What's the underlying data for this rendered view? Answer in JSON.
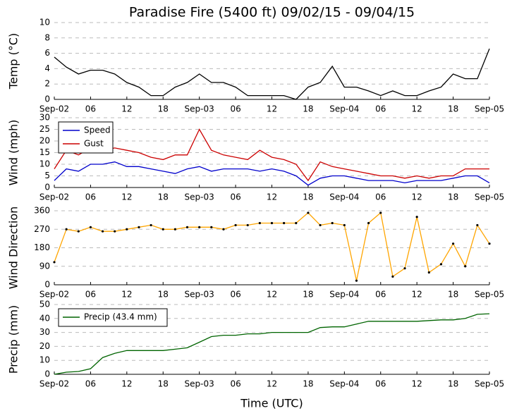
{
  "chart_data": [
    {
      "type": "line",
      "title": "Paradise Fire (5400 ft) 09/02/15 - 09/04/15",
      "ylabel": "Temp (°C)",
      "x": [
        "2015-09-02 00:00",
        "2015-09-02 02:00",
        "2015-09-02 04:00",
        "2015-09-02 06:00",
        "2015-09-02 08:00",
        "2015-09-02 10:00",
        "2015-09-02 12:00",
        "2015-09-02 14:00",
        "2015-09-02 16:00",
        "2015-09-02 18:00",
        "2015-09-02 20:00",
        "2015-09-02 22:00",
        "2015-09-03 00:00",
        "2015-09-03 02:00",
        "2015-09-03 04:00",
        "2015-09-03 06:00",
        "2015-09-03 08:00",
        "2015-09-03 10:00",
        "2015-09-03 12:00",
        "2015-09-03 14:00",
        "2015-09-03 16:00",
        "2015-09-03 18:00",
        "2015-09-03 20:00",
        "2015-09-03 22:00",
        "2015-09-04 00:00",
        "2015-09-04 02:00",
        "2015-09-04 04:00",
        "2015-09-04 06:00",
        "2015-09-04 08:00",
        "2015-09-04 10:00",
        "2015-09-04 12:00",
        "2015-09-04 14:00",
        "2015-09-04 16:00",
        "2015-09-04 18:00",
        "2015-09-04 20:00",
        "2015-09-04 22:00",
        "2015-09-05 00:00"
      ],
      "series": [
        {
          "name": "Temp",
          "color": "#000000",
          "values": [
            5.5,
            4.2,
            3.3,
            3.8,
            3.8,
            3.3,
            2.2,
            1.6,
            0.5,
            0.5,
            1.6,
            2.2,
            3.3,
            2.2,
            2.2,
            1.6,
            0.5,
            0.5,
            0.5,
            0.5,
            0.0,
            1.6,
            2.2,
            4.3,
            1.6,
            1.6,
            1.1,
            0.5,
            1.1,
            0.5,
            0.5,
            1.1,
            1.6,
            3.3,
            2.7,
            2.7,
            6.6
          ]
        }
      ],
      "xlim": [
        "2015-09-02 00:00",
        "2015-09-05 00:00"
      ],
      "xticks": [
        {
          "value": "2015-09-02 00:00",
          "label": "Sep-02"
        },
        {
          "value": "2015-09-02 06:00",
          "label": "06"
        },
        {
          "value": "2015-09-02 12:00",
          "label": "12"
        },
        {
          "value": "2015-09-02 18:00",
          "label": "18"
        },
        {
          "value": "2015-09-03 00:00",
          "label": "Sep-03"
        },
        {
          "value": "2015-09-03 06:00",
          "label": "06"
        },
        {
          "value": "2015-09-03 12:00",
          "label": "12"
        },
        {
          "value": "2015-09-03 18:00",
          "label": "18"
        },
        {
          "value": "2015-09-04 00:00",
          "label": "Sep-04"
        },
        {
          "value": "2015-09-04 06:00",
          "label": "06"
        },
        {
          "value": "2015-09-04 12:00",
          "label": "12"
        },
        {
          "value": "2015-09-04 18:00",
          "label": "18"
        },
        {
          "value": "2015-09-05 00:00",
          "label": "Sep-05"
        }
      ],
      "ylim": [
        0,
        10
      ],
      "yticks": [
        0,
        2,
        4,
        6,
        8,
        10
      ],
      "grid": true
    },
    {
      "type": "line",
      "ylabel": "Wind (mph)",
      "legend": "upper left",
      "x": [
        "2015-09-02 00:00",
        "2015-09-02 02:00",
        "2015-09-02 04:00",
        "2015-09-02 06:00",
        "2015-09-02 08:00",
        "2015-09-02 10:00",
        "2015-09-02 12:00",
        "2015-09-02 14:00",
        "2015-09-02 16:00",
        "2015-09-02 18:00",
        "2015-09-02 20:00",
        "2015-09-02 22:00",
        "2015-09-03 00:00",
        "2015-09-03 02:00",
        "2015-09-03 04:00",
        "2015-09-03 06:00",
        "2015-09-03 08:00",
        "2015-09-03 10:00",
        "2015-09-03 12:00",
        "2015-09-03 14:00",
        "2015-09-03 16:00",
        "2015-09-03 18:00",
        "2015-09-03 20:00",
        "2015-09-03 22:00",
        "2015-09-04 00:00",
        "2015-09-04 02:00",
        "2015-09-04 04:00",
        "2015-09-04 06:00",
        "2015-09-04 08:00",
        "2015-09-04 10:00",
        "2015-09-04 12:00",
        "2015-09-04 14:00",
        "2015-09-04 16:00",
        "2015-09-04 18:00",
        "2015-09-04 20:00",
        "2015-09-04 22:00",
        "2015-09-05 00:00"
      ],
      "series": [
        {
          "name": "Speed",
          "color": "#0000cc",
          "values": [
            3,
            8,
            7,
            10,
            10,
            11,
            9,
            9,
            8,
            7,
            6,
            8,
            9,
            7,
            8,
            8,
            8,
            7,
            8,
            7,
            5,
            1,
            4,
            5,
            5,
            4,
            3,
            3,
            3,
            2,
            3,
            3,
            3,
            4,
            5,
            5,
            2
          ]
        },
        {
          "name": "Gust",
          "color": "#cc0000",
          "values": [
            8,
            16,
            14,
            17,
            16,
            17,
            16,
            15,
            13,
            12,
            14,
            14,
            25,
            16,
            14,
            13,
            12,
            16,
            13,
            12,
            10,
            3,
            11,
            9,
            8,
            7,
            6,
            5,
            5,
            4,
            5,
            4,
            5,
            5,
            8,
            8,
            8
          ]
        }
      ],
      "xlim": [
        "2015-09-02 00:00",
        "2015-09-05 00:00"
      ],
      "xticks": [
        {
          "value": "2015-09-02 00:00",
          "label": "Sep-02"
        },
        {
          "value": "2015-09-02 06:00",
          "label": "06"
        },
        {
          "value": "2015-09-02 12:00",
          "label": "12"
        },
        {
          "value": "2015-09-02 18:00",
          "label": "18"
        },
        {
          "value": "2015-09-03 00:00",
          "label": "Sep-03"
        },
        {
          "value": "2015-09-03 06:00",
          "label": "06"
        },
        {
          "value": "2015-09-03 12:00",
          "label": "12"
        },
        {
          "value": "2015-09-03 18:00",
          "label": "18"
        },
        {
          "value": "2015-09-04 00:00",
          "label": "Sep-04"
        },
        {
          "value": "2015-09-04 06:00",
          "label": "06"
        },
        {
          "value": "2015-09-04 12:00",
          "label": "12"
        },
        {
          "value": "2015-09-04 18:00",
          "label": "18"
        },
        {
          "value": "2015-09-05 00:00",
          "label": "Sep-05"
        }
      ],
      "ylim": [
        0,
        30
      ],
      "yticks": [
        0,
        5,
        10,
        15,
        20,
        25,
        30
      ],
      "grid": true
    },
    {
      "type": "line",
      "ylabel": "Wind Direction",
      "markers": true,
      "x": [
        "2015-09-02 00:00",
        "2015-09-02 02:00",
        "2015-09-02 04:00",
        "2015-09-02 06:00",
        "2015-09-02 08:00",
        "2015-09-02 10:00",
        "2015-09-02 12:00",
        "2015-09-02 14:00",
        "2015-09-02 16:00",
        "2015-09-02 18:00",
        "2015-09-02 20:00",
        "2015-09-02 22:00",
        "2015-09-03 00:00",
        "2015-09-03 02:00",
        "2015-09-03 04:00",
        "2015-09-03 06:00",
        "2015-09-03 08:00",
        "2015-09-03 10:00",
        "2015-09-03 12:00",
        "2015-09-03 14:00",
        "2015-09-03 16:00",
        "2015-09-03 18:00",
        "2015-09-03 20:00",
        "2015-09-03 22:00",
        "2015-09-04 00:00",
        "2015-09-04 02:00",
        "2015-09-04 04:00",
        "2015-09-04 06:00",
        "2015-09-04 08:00",
        "2015-09-04 10:00",
        "2015-09-04 12:00",
        "2015-09-04 14:00",
        "2015-09-04 16:00",
        "2015-09-04 18:00",
        "2015-09-04 20:00",
        "2015-09-04 22:00",
        "2015-09-05 00:00"
      ],
      "series": [
        {
          "name": "Direction",
          "color": "#ffa500",
          "values": [
            110,
            270,
            260,
            280,
            260,
            260,
            270,
            280,
            290,
            270,
            270,
            280,
            280,
            280,
            270,
            290,
            290,
            300,
            300,
            300,
            300,
            350,
            290,
            300,
            290,
            20,
            300,
            350,
            40,
            80,
            330,
            60,
            100,
            200,
            90,
            290,
            200
          ]
        }
      ],
      "xlim": [
        "2015-09-02 00:00",
        "2015-09-05 00:00"
      ],
      "xticks": [
        {
          "value": "2015-09-02 00:00",
          "label": "Sep-02"
        },
        {
          "value": "2015-09-02 06:00",
          "label": "06"
        },
        {
          "value": "2015-09-02 12:00",
          "label": "12"
        },
        {
          "value": "2015-09-02 18:00",
          "label": "18"
        },
        {
          "value": "2015-09-03 00:00",
          "label": "Sep-03"
        },
        {
          "value": "2015-09-03 06:00",
          "label": "06"
        },
        {
          "value": "2015-09-03 12:00",
          "label": "12"
        },
        {
          "value": "2015-09-03 18:00",
          "label": "18"
        },
        {
          "value": "2015-09-04 00:00",
          "label": "Sep-04"
        },
        {
          "value": "2015-09-04 06:00",
          "label": "06"
        },
        {
          "value": "2015-09-04 12:00",
          "label": "12"
        },
        {
          "value": "2015-09-04 18:00",
          "label": "18"
        },
        {
          "value": "2015-09-05 00:00",
          "label": "Sep-05"
        }
      ],
      "ylim": [
        0,
        360
      ],
      "yticks": [
        0,
        90,
        180,
        270,
        360
      ],
      "grid": true
    },
    {
      "type": "line",
      "ylabel": "Precip (mm)",
      "xlabel": "Time (UTC)",
      "legend": "upper left",
      "x": [
        "2015-09-02 00:00",
        "2015-09-02 02:00",
        "2015-09-02 04:00",
        "2015-09-02 06:00",
        "2015-09-02 08:00",
        "2015-09-02 10:00",
        "2015-09-02 12:00",
        "2015-09-02 14:00",
        "2015-09-02 16:00",
        "2015-09-02 18:00",
        "2015-09-02 20:00",
        "2015-09-02 22:00",
        "2015-09-03 00:00",
        "2015-09-03 02:00",
        "2015-09-03 04:00",
        "2015-09-03 06:00",
        "2015-09-03 08:00",
        "2015-09-03 10:00",
        "2015-09-03 12:00",
        "2015-09-03 14:00",
        "2015-09-03 16:00",
        "2015-09-03 18:00",
        "2015-09-03 20:00",
        "2015-09-03 22:00",
        "2015-09-04 00:00",
        "2015-09-04 02:00",
        "2015-09-04 04:00",
        "2015-09-04 06:00",
        "2015-09-04 08:00",
        "2015-09-04 10:00",
        "2015-09-04 12:00",
        "2015-09-04 14:00",
        "2015-09-04 16:00",
        "2015-09-04 18:00",
        "2015-09-04 20:00",
        "2015-09-04 22:00",
        "2015-09-05 00:00"
      ],
      "series": [
        {
          "name": "Precip (43.4 mm)",
          "color": "#006400",
          "values": [
            0,
            1.5,
            2,
            4,
            12,
            15,
            17,
            17,
            17,
            17,
            18,
            19,
            23,
            27,
            28,
            28,
            29,
            29,
            30,
            30,
            30,
            30,
            33.5,
            34,
            34,
            36,
            38,
            38,
            38,
            38,
            38,
            38.5,
            39,
            39,
            40,
            43,
            43.4
          ]
        }
      ],
      "xlim": [
        "2015-09-02 00:00",
        "2015-09-05 00:00"
      ],
      "xticks": [
        {
          "value": "2015-09-02 00:00",
          "label": "Sep-02"
        },
        {
          "value": "2015-09-02 06:00",
          "label": "06"
        },
        {
          "value": "2015-09-02 12:00",
          "label": "12"
        },
        {
          "value": "2015-09-02 18:00",
          "label": "18"
        },
        {
          "value": "2015-09-03 00:00",
          "label": "Sep-03"
        },
        {
          "value": "2015-09-03 06:00",
          "label": "06"
        },
        {
          "value": "2015-09-03 12:00",
          "label": "12"
        },
        {
          "value": "2015-09-03 18:00",
          "label": "18"
        },
        {
          "value": "2015-09-04 00:00",
          "label": "Sep-04"
        },
        {
          "value": "2015-09-04 06:00",
          "label": "06"
        },
        {
          "value": "2015-09-04 12:00",
          "label": "12"
        },
        {
          "value": "2015-09-04 18:00",
          "label": "18"
        },
        {
          "value": "2015-09-05 00:00",
          "label": "Sep-05"
        }
      ],
      "ylim": [
        0,
        50
      ],
      "yticks": [
        0,
        10,
        20,
        30,
        40,
        50
      ],
      "grid": true
    }
  ]
}
